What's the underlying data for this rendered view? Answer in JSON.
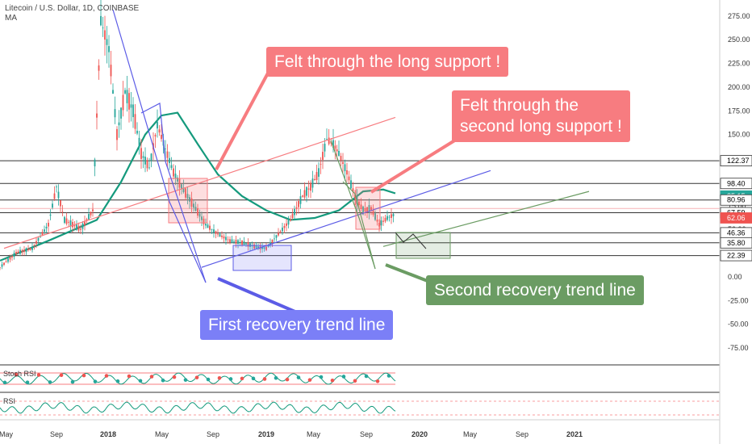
{
  "header": {
    "symbol": "Litecoin / U.S. Dollar, 1D, COINBASE",
    "indicator": "MA"
  },
  "callouts": {
    "felt_long": "Felt through the long support !",
    "felt_second_1": "Felt through the",
    "felt_second_2": "second long support !",
    "first_recovery": "First recovery trend line",
    "second_recovery": "Second recovery trend line"
  },
  "colors": {
    "red_callout": "#f77c80",
    "blue_callout": "#7b7ff7",
    "green_callout": "#6b9c63",
    "ma_line": "#159a7d",
    "up_candle": "#26a69a",
    "down_candle": "#ef5350",
    "red_trend": "#f77c80",
    "blue_trend": "#5c5ce6",
    "green_trend": "#6b9c63",
    "rsi_line": "#159a7d"
  },
  "chart_data": {
    "type": "candlestick",
    "title": "Litecoin / U.S. Dollar, 1D, COINBASE",
    "y_axis_ticks": [
      "275.00",
      "250.00",
      "225.00",
      "200.00",
      "175.00",
      "150.00",
      "125.00",
      "100.00",
      "75.00",
      "50.00",
      "25.00",
      "0.00",
      "-25.00",
      "-50.00",
      "-75.00"
    ],
    "ylim": [
      -75,
      285
    ],
    "x_axis_ticks": [
      "May",
      "Sep",
      "2018",
      "May",
      "Sep",
      "2019",
      "May",
      "Sep",
      "2020",
      "May",
      "Sep",
      "2021"
    ],
    "bold_ticks": [
      "2018",
      "2019",
      "2020",
      "2021"
    ],
    "horizontal_levels": [
      122.37,
      98.4,
      80.96,
      67.59,
      46.36,
      35.8,
      22.39
    ],
    "price_tags": [
      {
        "label": "122.37",
        "value": 122.37,
        "style": "dark"
      },
      {
        "label": "98.40",
        "value": 98.4,
        "style": "dark"
      },
      {
        "label": "85.15",
        "value": 85.15,
        "style": "green"
      },
      {
        "label": "80.96",
        "value": 80.96,
        "style": "dark"
      },
      {
        "label": "67.59",
        "value": 67.59,
        "style": "dark"
      },
      {
        "label": "62.06",
        "value": 62.06,
        "style": "red"
      },
      {
        "label": "46.36",
        "value": 46.36,
        "style": "dark"
      },
      {
        "label": "35.80",
        "value": 35.8,
        "style": "dark"
      },
      {
        "label": "22.39",
        "value": 22.39,
        "style": "dark"
      }
    ],
    "ma_series": [
      [
        0,
        17
      ],
      [
        60,
        38
      ],
      [
        120,
        60
      ],
      [
        150,
        100
      ],
      [
        180,
        150
      ],
      [
        200,
        170
      ],
      [
        220,
        173
      ],
      [
        245,
        140
      ],
      [
        270,
        108
      ],
      [
        300,
        85
      ],
      [
        330,
        70
      ],
      [
        360,
        60
      ],
      [
        390,
        62
      ],
      [
        420,
        70
      ],
      [
        450,
        90
      ],
      [
        475,
        92
      ],
      [
        490,
        88
      ]
    ],
    "price_path": [
      [
        0,
        10
      ],
      [
        20,
        25
      ],
      [
        40,
        30
      ],
      [
        60,
        55
      ],
      [
        70,
        95
      ],
      [
        80,
        60
      ],
      [
        100,
        50
      ],
      [
        115,
        70
      ],
      [
        125,
        270
      ],
      [
        135,
        240
      ],
      [
        145,
        150
      ],
      [
        155,
        195
      ],
      [
        165,
        175
      ],
      [
        175,
        130
      ],
      [
        185,
        115
      ],
      [
        195,
        160
      ],
      [
        205,
        135
      ],
      [
        215,
        110
      ],
      [
        225,
        95
      ],
      [
        240,
        75
      ],
      [
        255,
        55
      ],
      [
        270,
        45
      ],
      [
        285,
        38
      ],
      [
        300,
        36
      ],
      [
        315,
        32
      ],
      [
        330,
        30
      ],
      [
        345,
        45
      ],
      [
        360,
        60
      ],
      [
        375,
        85
      ],
      [
        385,
        95
      ],
      [
        395,
        110
      ],
      [
        405,
        145
      ],
      [
        413,
        140
      ],
      [
        420,
        130
      ],
      [
        430,
        110
      ],
      [
        440,
        85
      ],
      [
        450,
        70
      ],
      [
        460,
        72
      ],
      [
        470,
        55
      ],
      [
        480,
        62
      ],
      [
        490,
        66
      ]
    ],
    "trend_lines": [
      {
        "name": "red",
        "from": [
          5,
          30
        ],
        "to": [
          490,
          168
        ]
      },
      {
        "name": "blue",
        "from": [
          250,
          10
        ],
        "to": [
          608,
          112
        ]
      },
      {
        "name": "green",
        "from": [
          475,
          32
        ],
        "to": [
          730,
          90
        ]
      }
    ],
    "oscillator": {
      "label": "Stoch RSI",
      "value": "1",
      "zero": "0",
      "top": "75.00"
    },
    "rsi": {
      "label": "RSI",
      "value": "57.46",
      "top": "100.00"
    }
  }
}
